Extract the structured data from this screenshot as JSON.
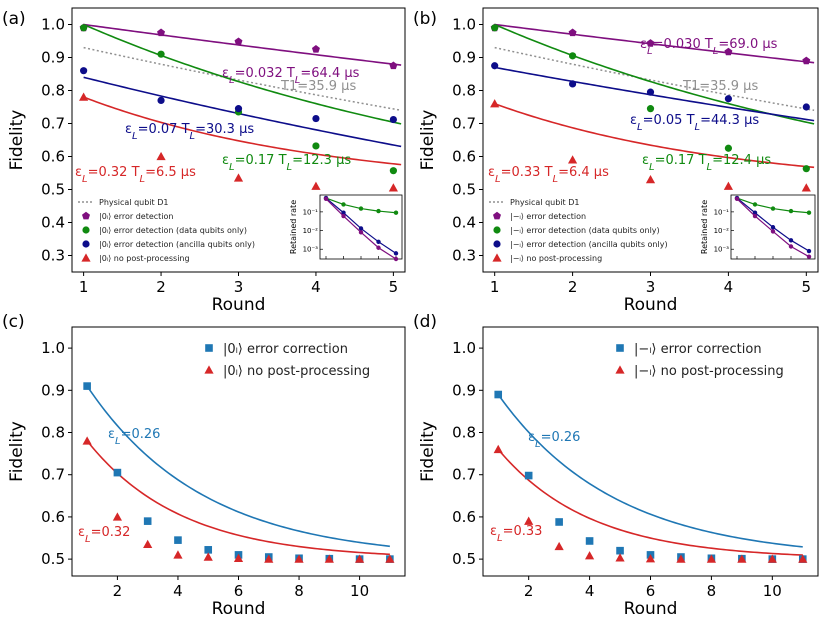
{
  "chart_data": [
    {
      "panel": "(a)",
      "type": "scatter",
      "xlabel": "Round",
      "ylabel": "Fidelity",
      "xlim": [
        0.85,
        5.15
      ],
      "ylim": [
        0.25,
        1.05
      ],
      "xticks": [
        "1",
        "2",
        "3",
        "4",
        "5"
      ],
      "yticks": [
        "0.3",
        "0.4",
        "0.5",
        "0.6",
        "0.7",
        "0.8",
        "0.9",
        "1.0"
      ],
      "physical": {
        "legend": "Physical qubit D1",
        "annotation": "T₁=35.9 μs",
        "T1": 35.9,
        "x1": 1,
        "y1": 0.93,
        "x5": 5.1,
        "y5": 0.74,
        "color": "#909090"
      },
      "series": [
        {
          "name": "|0ₗ⟩ error detection",
          "color": "#7f0f7f",
          "marker": "pentagon",
          "x": [
            1,
            2,
            3,
            4,
            5
          ],
          "values": [
            0.99,
            0.975,
            0.948,
            0.925,
            0.875
          ],
          "annotation": "εL=0.032 TL=64.4 μs",
          "fit": {
            "a": 1.0,
            "k": 0.032,
            "c": 0.0
          }
        },
        {
          "name": "|0ₗ⟩ error detection (data qubits only)",
          "color": "#108a10",
          "marker": "circle",
          "x": [
            1,
            2,
            3,
            4,
            5
          ],
          "values": [
            0.99,
            0.91,
            0.735,
            0.632,
            0.557
          ],
          "annotation": "εL=0.17 TL=12.3 μs",
          "fit": {
            "a": 0.6,
            "k": 0.17,
            "c": 0.4
          }
        },
        {
          "name": "|0ₗ⟩ error detection (ancilla qubits only)",
          "color": "#0d0d8a",
          "marker": "circle",
          "x": [
            1,
            2,
            3,
            4,
            5
          ],
          "values": [
            0.86,
            0.77,
            0.745,
            0.715,
            0.712
          ],
          "annotation": "εL=0.07 TL=30.3 μs",
          "fit": {
            "a": 0.84,
            "k": 0.07,
            "c": 0.0
          }
        },
        {
          "name": "|0ₗ⟩ no post-processing",
          "color": "#d62728",
          "marker": "triangle",
          "x": [
            1,
            2,
            3,
            4,
            5
          ],
          "values": [
            0.78,
            0.6,
            0.535,
            0.51,
            0.505
          ],
          "annotation": "εL=0.32 TL=6.5 μs",
          "fit": {
            "a": 0.28,
            "k": 0.32,
            "c": 0.5
          }
        }
      ],
      "inset": {
        "ylabel": "Retained rate",
        "yticks": [
          "10⁻¹",
          "10⁻²",
          "10⁻³"
        ],
        "series": [
          {
            "color": "#108a10",
            "values": [
              0.55,
              0.25,
              0.15,
              0.11,
              0.09
            ]
          },
          {
            "color": "#0d0d8a",
            "values": [
              0.55,
              0.09,
              0.013,
              0.0025,
              0.0006
            ]
          },
          {
            "color": "#7f0f7f",
            "values": [
              0.5,
              0.06,
              0.008,
              0.0012,
              0.0003
            ]
          }
        ]
      }
    },
    {
      "panel": "(b)",
      "type": "scatter",
      "xlabel": "Round",
      "ylabel": "Fidelity",
      "xlim": [
        0.85,
        5.15
      ],
      "ylim": [
        0.25,
        1.05
      ],
      "xticks": [
        "1",
        "2",
        "3",
        "4",
        "5"
      ],
      "yticks": [
        "0.3",
        "0.4",
        "0.5",
        "0.6",
        "0.7",
        "0.8",
        "0.9",
        "1.0"
      ],
      "physical": {
        "legend": "Physical qubit D1",
        "annotation": "T₁=35.9 μs",
        "T1": 35.9,
        "x1": 1,
        "y1": 0.93,
        "x5": 5.1,
        "y5": 0.74,
        "color": "#909090"
      },
      "series": [
        {
          "name": "|−ₗ⟩ error detection",
          "color": "#7f0f7f",
          "marker": "pentagon",
          "x": [
            1,
            2,
            3,
            4,
            5
          ],
          "values": [
            0.99,
            0.975,
            0.943,
            0.917,
            0.89
          ],
          "annotation": "εL=0.030 TL=69.0 μs",
          "fit": {
            "a": 1.0,
            "k": 0.03,
            "c": 0.0
          }
        },
        {
          "name": "|−ₗ⟩ error detection (data qubits only)",
          "color": "#108a10",
          "marker": "circle",
          "x": [
            1,
            2,
            3,
            4,
            5
          ],
          "values": [
            0.99,
            0.905,
            0.745,
            0.625,
            0.563
          ],
          "annotation": "εL=0.17 TL=12.4 μs",
          "fit": {
            "a": 0.6,
            "k": 0.17,
            "c": 0.4
          }
        },
        {
          "name": "|−ₗ⟩ error detection (ancilla qubits only)",
          "color": "#0d0d8a",
          "marker": "circle",
          "x": [
            1,
            2,
            3,
            4,
            5
          ],
          "values": [
            0.875,
            0.82,
            0.795,
            0.775,
            0.75
          ],
          "annotation": "εL=0.05 TL=44.3 μs",
          "fit": {
            "a": 0.87,
            "k": 0.05,
            "c": 0.0
          }
        },
        {
          "name": "|−ₗ⟩ no post-processing",
          "color": "#d62728",
          "marker": "triangle",
          "x": [
            1,
            2,
            3,
            4,
            5
          ],
          "values": [
            0.76,
            0.59,
            0.53,
            0.51,
            0.505
          ],
          "annotation": "εL=0.33 TL=6.4 μs",
          "fit": {
            "a": 0.26,
            "k": 0.33,
            "c": 0.5
          }
        }
      ],
      "inset": {
        "ylabel": "Retained rate",
        "yticks": [
          "10⁻¹",
          "10⁻²",
          "10⁻³"
        ],
        "series": [
          {
            "color": "#108a10",
            "values": [
              0.55,
              0.25,
              0.15,
              0.11,
              0.09
            ]
          },
          {
            "color": "#0d0d8a",
            "values": [
              0.55,
              0.09,
              0.015,
              0.003,
              0.0008
            ]
          },
          {
            "color": "#7f0f7f",
            "values": [
              0.5,
              0.06,
              0.009,
              0.0014,
              0.0004
            ]
          }
        ]
      }
    },
    {
      "panel": "(c)",
      "type": "scatter",
      "xlabel": "Round",
      "ylabel": "Fidelity",
      "xlim": [
        0.5,
        11.5
      ],
      "ylim": [
        0.46,
        1.05
      ],
      "xticks": [
        "2",
        "4",
        "6",
        "8",
        "10"
      ],
      "yticks": [
        "0.5",
        "0.6",
        "0.7",
        "0.8",
        "0.9",
        "1.0"
      ],
      "series": [
        {
          "name": "|0ₗ⟩ error correction",
          "color": "#1f77b4",
          "marker": "square",
          "x": [
            1,
            2,
            3,
            4,
            5,
            6,
            7,
            8,
            9,
            10,
            11
          ],
          "values": [
            0.91,
            0.705,
            0.59,
            0.545,
            0.522,
            0.51,
            0.505,
            0.502,
            0.501,
            0.5,
            0.5
          ],
          "annotation": "εL=0.26",
          "fit": {
            "a": 0.41,
            "k": 0.26,
            "c": 0.5
          }
        },
        {
          "name": "|0ₗ⟩ no post-processing",
          "color": "#d62728",
          "marker": "triangle",
          "x": [
            1,
            2,
            3,
            4,
            5,
            6,
            7,
            8,
            9,
            10,
            11
          ],
          "values": [
            0.78,
            0.6,
            0.535,
            0.51,
            0.505,
            0.502,
            0.5,
            0.5,
            0.5,
            0.5,
            0.5
          ],
          "annotation": "εL=0.32",
          "fit": {
            "a": 0.28,
            "k": 0.32,
            "c": 0.5
          }
        }
      ]
    },
    {
      "panel": "(d)",
      "type": "scatter",
      "xlabel": "Round",
      "ylabel": "Fidelity",
      "xlim": [
        0.5,
        11.5
      ],
      "ylim": [
        0.46,
        1.05
      ],
      "xticks": [
        "2",
        "4",
        "6",
        "8",
        "10"
      ],
      "yticks": [
        "0.5",
        "0.6",
        "0.7",
        "0.8",
        "0.9",
        "1.0"
      ],
      "series": [
        {
          "name": "|−ₗ⟩ error correction",
          "color": "#1f77b4",
          "marker": "square",
          "x": [
            1,
            2,
            3,
            4,
            5,
            6,
            7,
            8,
            9,
            10,
            11
          ],
          "values": [
            0.89,
            0.698,
            0.588,
            0.543,
            0.52,
            0.51,
            0.505,
            0.502,
            0.501,
            0.5,
            0.5
          ],
          "annotation": "εL=0.26",
          "fit": {
            "a": 0.39,
            "k": 0.26,
            "c": 0.5
          }
        },
        {
          "name": "|−ₗ⟩ no post-processing",
          "color": "#d62728",
          "marker": "triangle",
          "x": [
            1,
            2,
            3,
            4,
            5,
            6,
            7,
            8,
            9,
            10,
            11
          ],
          "values": [
            0.76,
            0.59,
            0.53,
            0.508,
            0.503,
            0.501,
            0.5,
            0.5,
            0.5,
            0.5,
            0.5
          ],
          "annotation": "εL=0.33",
          "fit": {
            "a": 0.26,
            "k": 0.33,
            "c": 0.5
          }
        }
      ]
    }
  ]
}
